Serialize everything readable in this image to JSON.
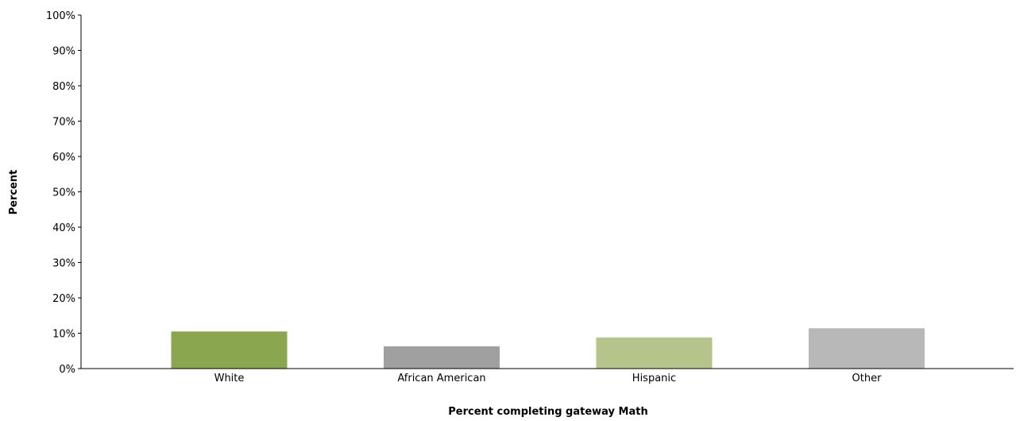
{
  "chart_data": {
    "type": "bar",
    "categories": [
      "White",
      "African American",
      "Hispanic",
      "Other"
    ],
    "values": [
      10.5,
      6.3,
      8.8,
      11.4
    ],
    "colors": [
      "#8aa64e",
      "#a0a0a0",
      "#b5c48a",
      "#b8b8b8"
    ],
    "title": "",
    "xlabel": "Percent completing gateway Math",
    "ylabel": "Percent",
    "ylim": [
      0,
      100
    ],
    "yticks": [
      0,
      10,
      20,
      30,
      40,
      50,
      60,
      70,
      80,
      90,
      100
    ],
    "ytick_labels": [
      "0%",
      "10%",
      "20%",
      "30%",
      "40%",
      "50%",
      "60%",
      "70%",
      "80%",
      "90%",
      "100%"
    ],
    "grid": false,
    "legend": "none"
  }
}
